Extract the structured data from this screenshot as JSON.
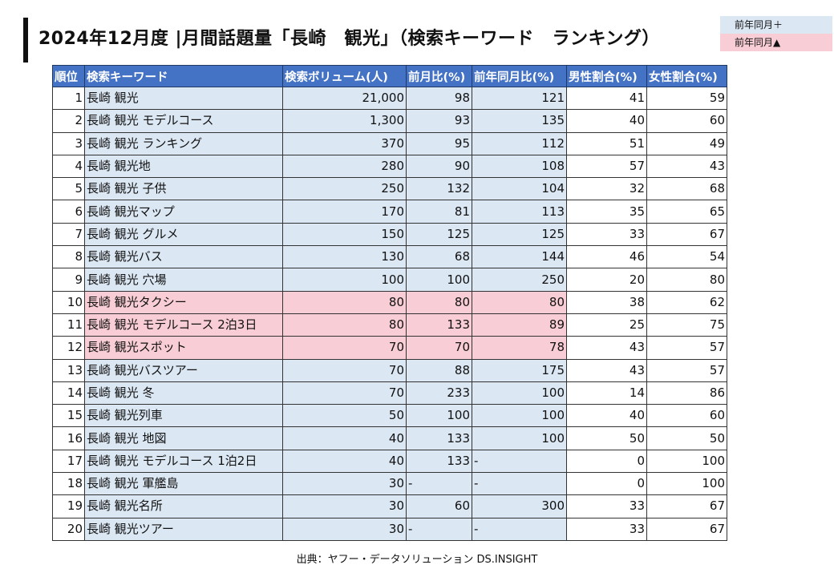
{
  "title": "2024年12月度 |月間話題量「長崎　観光」（検索キーワード　ランキング）",
  "legend": {
    "positive": "前年同月＋",
    "negative": "前年同月▲",
    "positive_color": "#dbe7f3",
    "negative_color": "#f8cdd5"
  },
  "table": {
    "headers": [
      "順位",
      "検索キーワード",
      "検索ボリューム(人)",
      "前月比(%)",
      "前年同月比(%)",
      "男性割合(%)",
      "女性割合(%)"
    ],
    "rows": [
      {
        "rank": "1",
        "keyword": "長崎 観光",
        "volume": "21,000",
        "mom": "98",
        "yoy": "121",
        "male": "41",
        "female": "59",
        "negative": false
      },
      {
        "rank": "2",
        "keyword": "長崎 観光 モデルコース",
        "volume": "1,300",
        "mom": "93",
        "yoy": "135",
        "male": "40",
        "female": "60",
        "negative": false
      },
      {
        "rank": "3",
        "keyword": "長崎 観光 ランキング",
        "volume": "370",
        "mom": "95",
        "yoy": "112",
        "male": "51",
        "female": "49",
        "negative": false
      },
      {
        "rank": "4",
        "keyword": "長崎 観光地",
        "volume": "280",
        "mom": "90",
        "yoy": "108",
        "male": "57",
        "female": "43",
        "negative": false
      },
      {
        "rank": "5",
        "keyword": "長崎 観光 子供",
        "volume": "250",
        "mom": "132",
        "yoy": "104",
        "male": "32",
        "female": "68",
        "negative": false
      },
      {
        "rank": "6",
        "keyword": "長崎 観光マップ",
        "volume": "170",
        "mom": "81",
        "yoy": "113",
        "male": "35",
        "female": "65",
        "negative": false
      },
      {
        "rank": "7",
        "keyword": "長崎 観光 グルメ",
        "volume": "150",
        "mom": "125",
        "yoy": "125",
        "male": "33",
        "female": "67",
        "negative": false
      },
      {
        "rank": "8",
        "keyword": "長崎 観光バス",
        "volume": "130",
        "mom": "68",
        "yoy": "144",
        "male": "46",
        "female": "54",
        "negative": false
      },
      {
        "rank": "9",
        "keyword": "長崎 観光 穴場",
        "volume": "100",
        "mom": "100",
        "yoy": "250",
        "male": "20",
        "female": "80",
        "negative": false
      },
      {
        "rank": "10",
        "keyword": "長崎 観光タクシー",
        "volume": "80",
        "mom": "80",
        "yoy": "80",
        "male": "38",
        "female": "62",
        "negative": true
      },
      {
        "rank": "11",
        "keyword": "長崎 観光 モデルコース 2泊3日",
        "volume": "80",
        "mom": "133",
        "yoy": "89",
        "male": "25",
        "female": "75",
        "negative": true
      },
      {
        "rank": "12",
        "keyword": "長崎 観光スポット",
        "volume": "70",
        "mom": "70",
        "yoy": "78",
        "male": "43",
        "female": "57",
        "negative": true
      },
      {
        "rank": "13",
        "keyword": "長崎 観光バスツアー",
        "volume": "70",
        "mom": "88",
        "yoy": "175",
        "male": "43",
        "female": "57",
        "negative": false
      },
      {
        "rank": "14",
        "keyword": "長崎 観光 冬",
        "volume": "70",
        "mom": "233",
        "yoy": "100",
        "male": "14",
        "female": "86",
        "negative": false
      },
      {
        "rank": "15",
        "keyword": "長崎 観光列車",
        "volume": "50",
        "mom": "100",
        "yoy": "100",
        "male": "40",
        "female": "60",
        "negative": false
      },
      {
        "rank": "16",
        "keyword": "長崎 観光 地図",
        "volume": "40",
        "mom": "133",
        "yoy": "100",
        "male": "50",
        "female": "50",
        "negative": false
      },
      {
        "rank": "17",
        "keyword": "長崎 観光 モデルコース 1泊2日",
        "volume": "40",
        "mom": "133",
        "yoy": "-",
        "male": "0",
        "female": "100",
        "negative": false
      },
      {
        "rank": "18",
        "keyword": "長崎 観光 軍艦島",
        "volume": "30",
        "mom": "-",
        "yoy": "-",
        "male": "0",
        "female": "100",
        "negative": false
      },
      {
        "rank": "19",
        "keyword": "長崎 観光名所",
        "volume": "30",
        "mom": "60",
        "yoy": "300",
        "male": "33",
        "female": "67",
        "negative": false
      },
      {
        "rank": "20",
        "keyword": "長崎 観光ツアー",
        "volume": "30",
        "mom": "-",
        "yoy": "-",
        "male": "33",
        "female": "67",
        "negative": false
      }
    ]
  },
  "source": "出典：ヤフー・データソリューション DS.INSIGHT"
}
